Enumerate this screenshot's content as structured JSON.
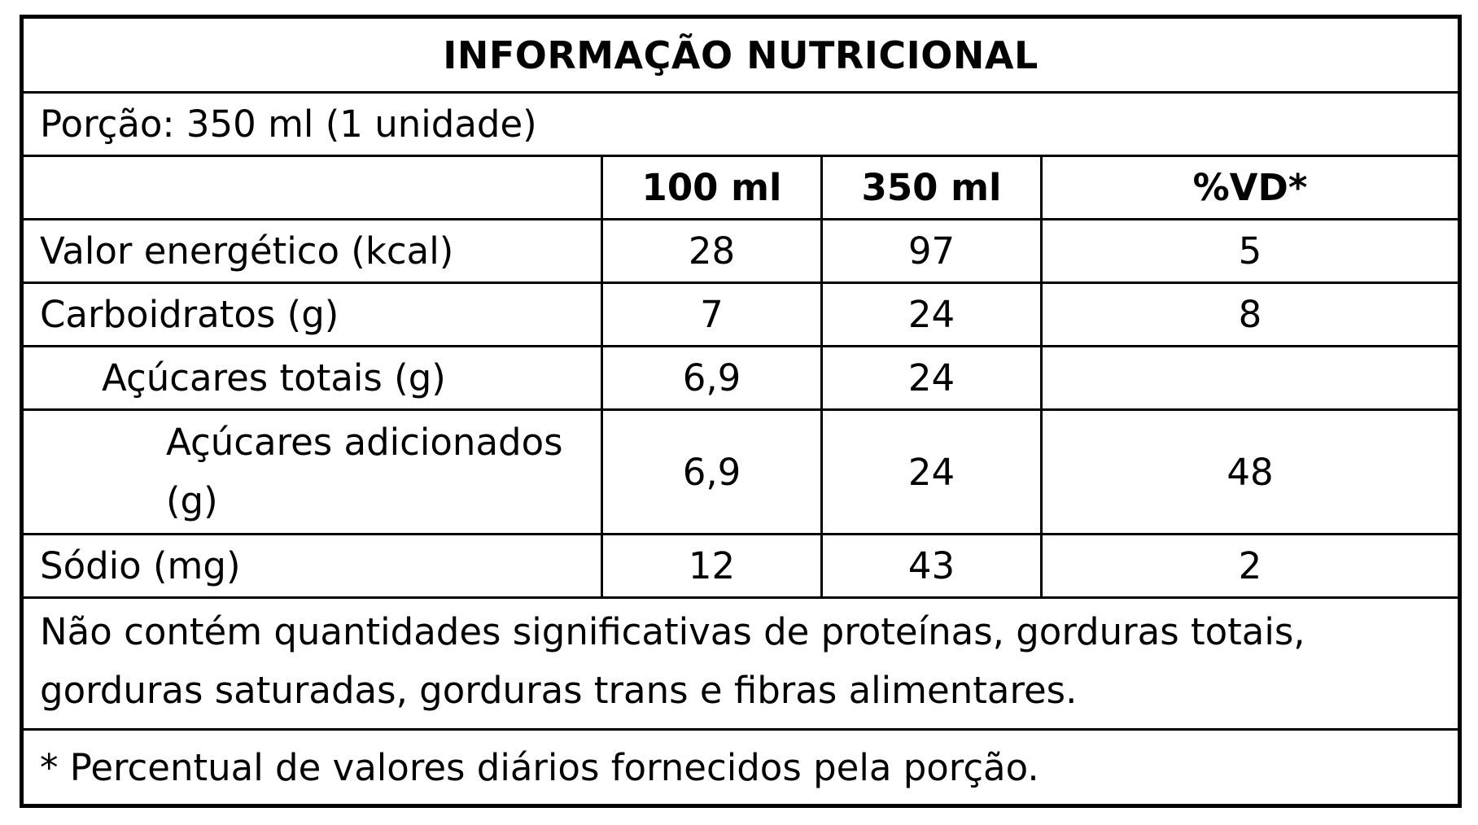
{
  "title": "INFORMAÇÃO NUTRICIONAL",
  "portion": "Porção: 350 ml (1 unidade)",
  "columns": [
    "100 ml",
    "350 ml",
    "%VD*"
  ],
  "rows": [
    {
      "name": "Valor energético (kcal)",
      "v100": "28",
      "v350": "97",
      "vd": "5"
    },
    {
      "name": "Carboidratos (g)",
      "v100": "7",
      "v350": "24",
      "vd": "8"
    },
    {
      "name": "Açúcares totais (g)",
      "v100": "6,9",
      "v350": "24",
      "vd": ""
    },
    {
      "name": "Açúcares adicionados (g)",
      "v100": "6,9",
      "v350": "24",
      "vd": "48"
    },
    {
      "name": "Sódio (mg)",
      "v100": "12",
      "v350": "43",
      "vd": "2"
    }
  ],
  "note": "Não contém quantidades significativas de proteínas, gorduras totais, gorduras saturadas, gorduras trans e fibras alimentares.",
  "footnote": "* Percentual de valores diários fornecidos pela porção."
}
